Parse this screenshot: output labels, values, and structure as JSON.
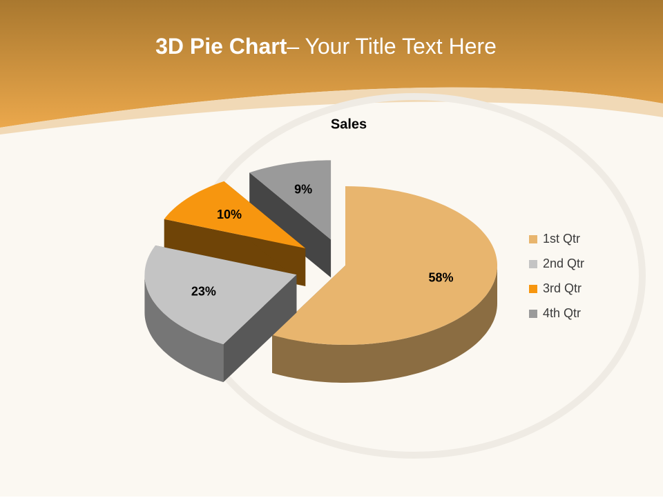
{
  "slide": {
    "title_bold": "3D Pie Chart",
    "title_rest": "– Your Title Text Here"
  },
  "chart_data": {
    "type": "pie",
    "title": "Sales",
    "categories": [
      "1st Qtr",
      "2nd Qtr",
      "3rd Qtr",
      "4th Qtr"
    ],
    "values": [
      58,
      23,
      10,
      9
    ],
    "value_labels": [
      "58%",
      "23%",
      "10%",
      "9%"
    ],
    "colors": [
      "#E8B56E",
      "#C4C4C4",
      "#F7960F",
      "#9A9A9A"
    ],
    "legend": "right"
  }
}
